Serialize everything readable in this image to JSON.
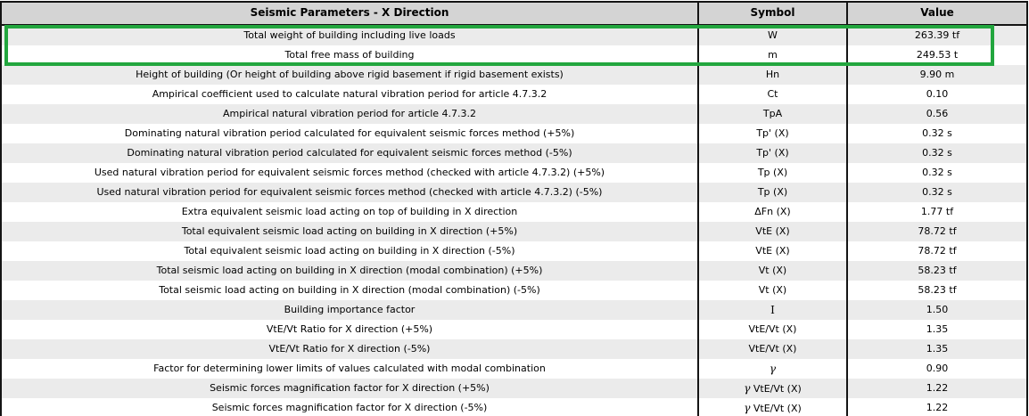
{
  "colors": {
    "accent_green": "#22a63e",
    "header_bg": "#d4d4d4",
    "stripe_bg": "#ebebeb",
    "border": "#141414",
    "text": "#000000"
  },
  "table": {
    "header": {
      "param": "Seismic Parameters - X Direction",
      "symbol": "Symbol",
      "value": "Value"
    },
    "highlighted_rows": [
      0,
      1
    ],
    "rows": [
      {
        "param": "Total weight of building including live loads",
        "symbol": "W",
        "value": "263.39 tf",
        "highlight": true
      },
      {
        "param": "Total free mass of building",
        "symbol": "m",
        "value": "249.53 t",
        "highlight": true
      },
      {
        "param": "Height of building (Or height of building above rigid basement if rigid basement exists)",
        "symbol": "Hn",
        "value": "9.90 m"
      },
      {
        "param": "Ampirical coefficient used to calculate natural vibration period for article 4.7.3.2",
        "symbol": "Ct",
        "value": "0.10"
      },
      {
        "param": "Ampirical natural vibration period for article 4.7.3.2",
        "symbol": "TpA",
        "value": "0.56"
      },
      {
        "param": "Dominating natural vibration period calculated for equivalent seismic forces method (+5%)",
        "symbol": "Tp' (X)",
        "value": "0.32 s"
      },
      {
        "param": "Dominating natural vibration period calculated for equivalent seismic forces method (-5%)",
        "symbol": "Tp' (X)",
        "value": "0.32 s"
      },
      {
        "param": "Used natural vibration period for equivalent seismic forces method (checked with article 4.7.3.2) (+5%)",
        "symbol": "Tp (X)",
        "value": "0.32 s"
      },
      {
        "param": "Used natural vibration period for equivalent seismic forces method (checked with article 4.7.3.2) (-5%)",
        "symbol": "Tp (X)",
        "value": "0.32 s"
      },
      {
        "param": "Extra equivalent seismic load acting on top of building in X direction",
        "symbol": "ΔFn (X)",
        "value": "1.77 tf"
      },
      {
        "param": "Total equivalent seismic load acting on building in X direction (+5%)",
        "symbol": "VtE (X)",
        "value": "78.72 tf"
      },
      {
        "param": "Total equivalent seismic load acting on building in X direction (-5%)",
        "symbol": "VtE (X)",
        "value": "78.72 tf"
      },
      {
        "param": "Total seismic load acting on building in X direction (modal combination) (+5%)",
        "symbol": "Vt (X)",
        "value": "58.23 tf"
      },
      {
        "param": "Total seismic load acting on building in X direction (modal combination) (-5%)",
        "symbol": "Vt (X)",
        "value": "58.23 tf"
      },
      {
        "param": "Building importance factor",
        "symbol": "I",
        "value": "1.50"
      },
      {
        "param": "VtE/Vt Ratio for X direction (+5%)",
        "symbol": "VtE/Vt (X)",
        "value": "1.35"
      },
      {
        "param": "VtE/Vt Ratio for X direction (-5%)",
        "symbol": "VtE/Vt (X)",
        "value": "1.35"
      },
      {
        "param": "Factor for determining lower limits of values calculated with modal combination",
        "symbol": "γ",
        "value": "0.90"
      },
      {
        "param": "Seismic forces magnification factor for X direction (+5%)",
        "symbol": "γ VtE/Vt (X)",
        "value": "1.22"
      },
      {
        "param": "Seismic forces magnification factor for X direction (-5%)",
        "symbol": "γ VtE/Vt (X)",
        "value": "1.22"
      }
    ]
  }
}
